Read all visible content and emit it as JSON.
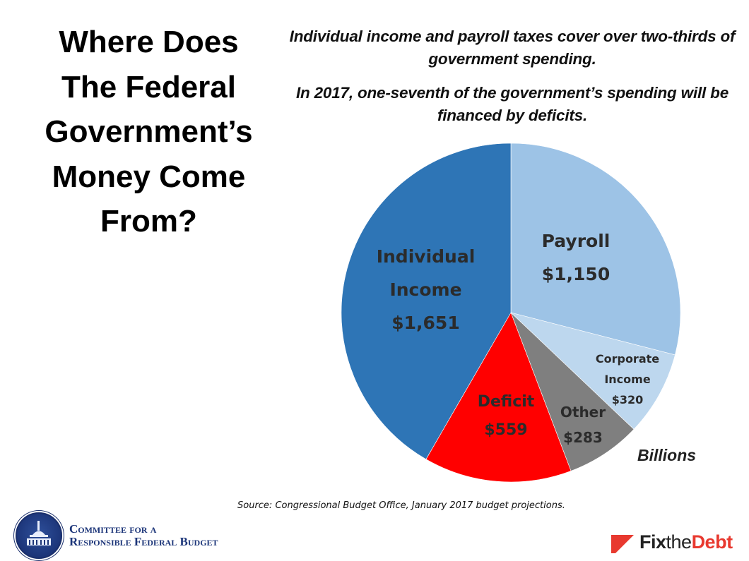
{
  "title": {
    "lines": [
      "Where Does",
      "The Federal",
      "Government’s",
      "Money Come",
      "From?"
    ]
  },
  "subtitles": [
    "Individual income and payroll taxes cover over two-thirds of government spending.",
    "In 2017, one-seventh of the government’s spending will be financed by deficits."
  ],
  "units_label": "Billions",
  "source": "Source: Congressional Budget Office, January 2017 budget projections.",
  "logos": {
    "crfb": {
      "line1": "Committee for a",
      "line2": "Responsible Federal Budget",
      "icon": "capitol-seal-icon"
    },
    "fix_the_debt": {
      "part1": "Fix",
      "part2": "the",
      "part3": "Debt",
      "icon": "red-flag-icon"
    }
  },
  "colors": {
    "payroll": "#9dc3e6",
    "corporate": "#bdd7ee",
    "other": "#7f7f7f",
    "deficit": "#ff0000",
    "individual": "#2e75b6",
    "brand_red": "#e8392f",
    "crfb_blue": "#1c3579"
  },
  "chart_data": {
    "type": "pie",
    "title": "Where Does The Federal Government’s Money Come From?",
    "units": "Billions of dollars",
    "start_angle_deg": 0,
    "direction": "clockwise",
    "categories": [
      "Payroll",
      "Corporate Income",
      "Other",
      "Deficit",
      "Individual Income"
    ],
    "values": [
      1150,
      320,
      283,
      559,
      1651
    ],
    "value_labels": [
      "$1,150",
      "$320",
      "$283",
      "$559",
      "$1,651"
    ],
    "legend": "none (labels inside slices)"
  },
  "slice_labels": {
    "payroll": {
      "name": "Payroll",
      "value": "$1,150"
    },
    "corporate": {
      "name1": "Corporate",
      "name2": "Income",
      "value": "$320"
    },
    "other": {
      "name": "Other",
      "value": "$283"
    },
    "deficit": {
      "name": "Deficit",
      "value": "$559"
    },
    "individual": {
      "name1": "Individual",
      "name2": "Income",
      "value": "$1,651"
    }
  }
}
